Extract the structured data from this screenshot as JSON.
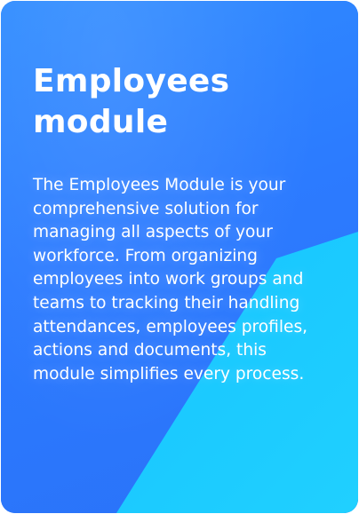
{
  "card": {
    "title": "Employees module",
    "description": "The Employees Module is your comprehensive solution for managing all aspects of your workforce. From organizing employees into work groups and teams to tracking their handling attendances, employees profiles, actions and documents, this module simplifies every process."
  },
  "colors": {
    "primary_blue": "#2e80ff",
    "accent_cyan": "#18c6ff",
    "text": "#ffffff"
  }
}
